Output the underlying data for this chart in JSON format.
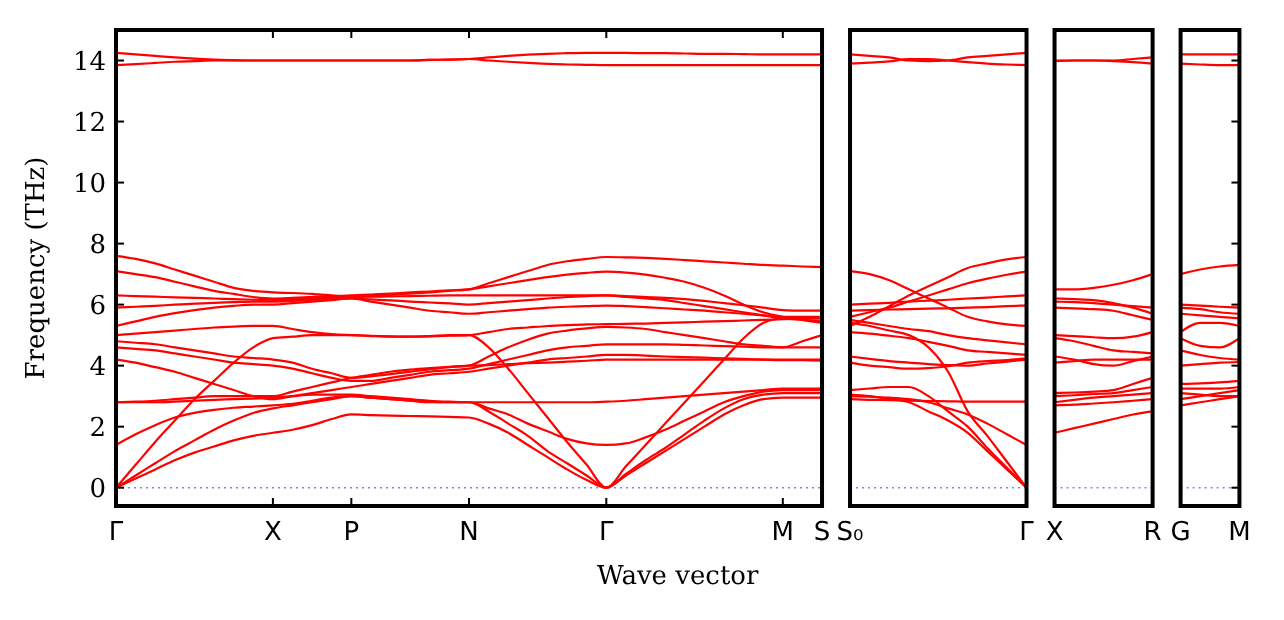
{
  "chart_data": [
    {
      "type": "line",
      "xlabel": "Wave vector",
      "ylabel": "Frequency (THz)",
      "ylim": [
        -0.6,
        15
      ],
      "yticks": [
        0,
        2,
        4,
        6,
        8,
        10,
        12,
        14
      ],
      "grid": false,
      "categories": [
        "Γ",
        null,
        null,
        null,
        null,
        null,
        null,
        null,
        "X",
        null,
        null,
        null,
        "P",
        null,
        null,
        null,
        null,
        null,
        "N",
        null,
        null,
        null,
        null,
        null,
        null,
        "Γ",
        null,
        null,
        null,
        null,
        null,
        null,
        null,
        null,
        "M",
        null,
        "S"
      ],
      "ref_lines": [
        {
          "axis": "y",
          "value": 0,
          "color": "#8080ff",
          "line_style": "dotted"
        }
      ],
      "series": [
        {
          "color": "#ff0000",
          "values": [
            0,
            0.3,
            0.6,
            0.9,
            1.15,
            1.35,
            1.55,
            1.7,
            1.8,
            1.9,
            2.05,
            2.25,
            2.4,
            2.38,
            2.36,
            2.35,
            2.34,
            2.32,
            2.3,
            2.1,
            1.8,
            1.4,
            1.0,
            0.6,
            0.25,
            0,
            0.4,
            0.8,
            1.2,
            1.6,
            2.0,
            2.4,
            2.7,
            2.9,
            2.95,
            2.95,
            2.95
          ]
        },
        {
          "color": "#ff0000",
          "values": [
            0,
            0.4,
            0.8,
            1.2,
            1.55,
            1.9,
            2.2,
            2.45,
            2.6,
            2.7,
            2.8,
            2.9,
            3.0,
            2.95,
            2.9,
            2.85,
            2.8,
            2.8,
            2.8,
            2.5,
            2.1,
            1.7,
            1.2,
            0.8,
            0.4,
            0,
            0.45,
            0.9,
            1.3,
            1.75,
            2.2,
            2.6,
            2.9,
            3.05,
            3.1,
            3.1,
            3.1
          ]
        },
        {
          "color": "#ff0000",
          "values": [
            0,
            0.75,
            1.5,
            2.2,
            2.9,
            3.5,
            4.1,
            4.6,
            4.9,
            4.95,
            5.0,
            5.0,
            5.0,
            4.97,
            4.95,
            4.95,
            4.97,
            5.0,
            5.0,
            4.6,
            3.9,
            3.1,
            2.3,
            1.5,
            0.75,
            0,
            0.7,
            1.4,
            2.1,
            2.8,
            3.5,
            4.2,
            4.9,
            5.4,
            5.55,
            5.55,
            5.55
          ]
        },
        {
          "color": "#ff0000",
          "values": [
            1.4,
            1.75,
            2.05,
            2.3,
            2.45,
            2.55,
            2.62,
            2.66,
            2.7,
            2.75,
            2.85,
            2.95,
            3.0,
            2.95,
            2.9,
            2.85,
            2.82,
            2.8,
            2.8,
            2.6,
            2.4,
            2.1,
            1.85,
            1.6,
            1.45,
            1.4,
            1.45,
            1.65,
            1.9,
            2.2,
            2.5,
            2.8,
            3.0,
            3.15,
            3.2,
            3.2,
            3.2
          ]
        },
        {
          "color": "#ff0000",
          "values": [
            2.8,
            2.8,
            2.8,
            2.82,
            2.85,
            2.88,
            2.9,
            2.92,
            2.95,
            3.0,
            3.05,
            3.05,
            3.05,
            3.0,
            2.95,
            2.9,
            2.85,
            2.82,
            2.8,
            2.8,
            2.8,
            2.8,
            2.8,
            2.8,
            2.8,
            2.82,
            2.85,
            2.9,
            2.95,
            3.0,
            3.05,
            3.1,
            3.15,
            3.2,
            3.25,
            3.25,
            3.25
          ]
        },
        {
          "color": "#ff0000",
          "values": [
            2.8,
            2.82,
            2.85,
            2.9,
            2.95,
            3.0,
            3.0,
            3.0,
            3.0,
            3.15,
            3.3,
            3.45,
            3.6,
            3.7,
            3.8,
            3.87,
            3.92,
            3.96,
            4.0,
            4.02,
            4.05,
            4.08,
            4.1,
            4.13,
            4.16,
            4.2,
            4.2,
            4.2,
            4.2,
            4.2,
            4.2,
            4.2,
            4.2,
            4.2,
            4.2,
            4.2,
            4.2
          ]
        },
        {
          "color": "#ff0000",
          "values": [
            4.2,
            4.1,
            3.95,
            3.8,
            3.6,
            3.4,
            3.2,
            3.0,
            2.9,
            3.0,
            3.1,
            3.2,
            3.3,
            3.4,
            3.5,
            3.6,
            3.7,
            3.75,
            3.8,
            3.9,
            4.0,
            4.1,
            4.2,
            4.25,
            4.3,
            4.35,
            4.35,
            4.33,
            4.3,
            4.28,
            4.26,
            4.24,
            4.22,
            4.2,
            4.18,
            4.18,
            4.16
          ]
        },
        {
          "color": "#ff0000",
          "values": [
            4.6,
            4.55,
            4.5,
            4.4,
            4.3,
            4.2,
            4.1,
            4.05,
            4.0,
            3.9,
            3.75,
            3.6,
            3.5,
            3.5,
            3.6,
            3.7,
            3.8,
            3.85,
            3.9,
            4.05,
            4.2,
            4.35,
            4.5,
            4.6,
            4.65,
            4.7,
            4.7,
            4.7,
            4.7,
            4.68,
            4.66,
            4.64,
            4.62,
            4.6,
            4.6,
            4.6,
            4.6
          ]
        },
        {
          "color": "#ff0000",
          "values": [
            4.8,
            4.75,
            4.7,
            4.6,
            4.5,
            4.4,
            4.3,
            4.25,
            4.2,
            4.1,
            3.9,
            3.75,
            3.6,
            3.65,
            3.72,
            3.8,
            3.88,
            3.95,
            4.0,
            4.3,
            4.6,
            4.85,
            5.05,
            5.15,
            5.22,
            5.27,
            5.25,
            5.2,
            5.1,
            5.0,
            4.9,
            4.8,
            4.7,
            4.65,
            4.6,
            4.8,
            5.0
          ]
        },
        {
          "color": "#ff0000",
          "values": [
            5.0,
            5.05,
            5.1,
            5.15,
            5.2,
            5.25,
            5.28,
            5.3,
            5.3,
            5.2,
            5.1,
            5.03,
            5.0,
            4.98,
            4.96,
            4.95,
            4.96,
            4.98,
            5.0,
            5.1,
            5.2,
            5.25,
            5.3,
            5.33,
            5.35,
            5.36,
            5.37,
            5.38,
            5.4,
            5.42,
            5.44,
            5.46,
            5.48,
            5.5,
            5.52,
            5.54,
            5.56
          ]
        },
        {
          "color": "#ff0000",
          "values": [
            5.3,
            5.45,
            5.6,
            5.72,
            5.82,
            5.9,
            5.96,
            6.0,
            6.0,
            6.05,
            6.1,
            6.15,
            6.2,
            6.1,
            6.0,
            5.9,
            5.8,
            5.75,
            5.7,
            5.75,
            5.8,
            5.85,
            5.9,
            5.93,
            5.95,
            5.97,
            5.95,
            5.92,
            5.88,
            5.84,
            5.8,
            5.75,
            5.7,
            5.65,
            5.6,
            5.6,
            5.6
          ]
        },
        {
          "color": "#ff0000",
          "values": [
            5.9,
            5.93,
            5.96,
            6.0,
            6.03,
            6.06,
            6.08,
            6.1,
            6.1,
            6.12,
            6.15,
            6.18,
            6.2,
            6.17,
            6.14,
            6.1,
            6.07,
            6.04,
            6.0,
            6.05,
            6.1,
            6.15,
            6.2,
            6.25,
            6.28,
            6.3,
            6.25,
            6.2,
            6.15,
            6.05,
            5.95,
            5.85,
            5.75,
            5.65,
            5.55,
            5.5,
            5.45
          ]
        },
        {
          "color": "#ff0000",
          "values": [
            6.3,
            6.28,
            6.26,
            6.24,
            6.22,
            6.2,
            6.18,
            6.16,
            6.15,
            6.17,
            6.2,
            6.22,
            6.25,
            6.26,
            6.27,
            6.28,
            6.29,
            6.3,
            6.3,
            6.3,
            6.3,
            6.3,
            6.3,
            6.3,
            6.3,
            6.3,
            6.28,
            6.25,
            6.22,
            6.18,
            6.12,
            6.05,
            5.98,
            5.9,
            5.82,
            5.8,
            5.8
          ]
        },
        {
          "color": "#ff0000",
          "values": [
            7.1,
            7.0,
            6.9,
            6.75,
            6.6,
            6.45,
            6.35,
            6.25,
            6.2,
            6.22,
            6.25,
            6.28,
            6.3,
            6.33,
            6.36,
            6.4,
            6.43,
            6.47,
            6.5,
            6.6,
            6.7,
            6.8,
            6.9,
            6.98,
            7.04,
            7.08,
            7.05,
            6.98,
            6.88,
            6.75,
            6.55,
            6.3,
            6.0,
            5.75,
            5.6,
            5.5,
            5.4
          ]
        },
        {
          "color": "#ff0000",
          "values": [
            7.6,
            7.5,
            7.35,
            7.15,
            6.95,
            6.75,
            6.55,
            6.45,
            6.4,
            6.38,
            6.35,
            6.3,
            6.25,
            6.28,
            6.32,
            6.36,
            6.4,
            6.45,
            6.5,
            6.7,
            6.9,
            7.1,
            7.3,
            7.42,
            7.5,
            7.56,
            7.55,
            7.53,
            7.5,
            7.46,
            7.42,
            7.38,
            7.34,
            7.3,
            7.28,
            7.25,
            7.23
          ]
        },
        {
          "color": "#ff0000",
          "values": [
            13.85,
            13.88,
            13.92,
            13.96,
            13.98,
            14.0,
            14.0,
            14.0,
            14.0,
            14.0,
            14.0,
            14.0,
            14.0,
            14.0,
            14.0,
            14.0,
            14.02,
            14.03,
            14.05,
            14.0,
            13.96,
            13.92,
            13.89,
            13.87,
            13.86,
            13.85,
            13.85,
            13.85,
            13.85,
            13.85,
            13.85,
            13.85,
            13.85,
            13.85,
            13.85,
            13.85,
            13.85
          ]
        },
        {
          "color": "#ff0000",
          "values": [
            14.25,
            14.2,
            14.15,
            14.1,
            14.06,
            14.03,
            14.01,
            14.0,
            14.0,
            14.0,
            14.0,
            14.0,
            14.0,
            14.0,
            14.0,
            14.0,
            14.02,
            14.03,
            14.05,
            14.1,
            14.15,
            14.19,
            14.22,
            14.24,
            14.25,
            14.25,
            14.25,
            14.24,
            14.24,
            14.23,
            14.22,
            14.22,
            14.21,
            14.2,
            14.2,
            14.2,
            14.2
          ]
        }
      ]
    },
    {
      "type": "line",
      "ylim": [
        -0.6,
        15
      ],
      "tick_labels": "x",
      "grid": false,
      "categories": [
        "S₀",
        null,
        null,
        null,
        null,
        null,
        null,
        null,
        null,
        "Γ"
      ],
      "ref_lines": [
        {
          "axis": "y",
          "value": 0,
          "color": "#8080ff",
          "line_style": "dotted"
        }
      ],
      "series": [
        {
          "color": "#ff0000",
          "values": [
            14.2,
            14.15,
            14.1,
            14.0,
            13.98,
            14.0,
            14.1,
            14.15,
            14.2,
            14.25
          ]
        },
        {
          "color": "#ff0000",
          "values": [
            13.9,
            13.93,
            13.97,
            14.05,
            14.05,
            14.0,
            13.95,
            13.9,
            13.87,
            13.85
          ]
        },
        {
          "color": "#ff0000",
          "values": [
            7.1,
            7.0,
            6.8,
            6.5,
            6.2,
            5.9,
            5.6,
            5.45,
            5.35,
            5.3
          ]
        },
        {
          "color": "#ff0000",
          "values": [
            5.3,
            5.6,
            5.95,
            6.3,
            6.6,
            6.9,
            7.2,
            7.35,
            7.48,
            7.56
          ]
        },
        {
          "color": "#ff0000",
          "values": [
            5.6,
            5.75,
            5.9,
            6.1,
            6.3,
            6.5,
            6.7,
            6.85,
            6.98,
            7.08
          ]
        },
        {
          "color": "#ff0000",
          "values": [
            6.0,
            6.03,
            6.06,
            6.1,
            6.13,
            6.16,
            6.2,
            6.23,
            6.27,
            6.3
          ]
        },
        {
          "color": "#ff0000",
          "values": [
            5.8,
            5.82,
            5.84,
            5.85,
            5.87,
            5.88,
            5.9,
            5.92,
            5.95,
            5.97
          ]
        },
        {
          "color": "#ff0000",
          "values": [
            5.5,
            5.4,
            5.3,
            5.2,
            5.13,
            5.0,
            4.9,
            4.83,
            4.76,
            4.7
          ]
        },
        {
          "color": "#ff0000",
          "values": [
            5.4,
            5.3,
            5.15,
            5.0,
            4.6,
            3.8,
            2.5,
            1.7,
            0.85,
            0
          ]
        },
        {
          "color": "#ff0000",
          "values": [
            5.1,
            5.05,
            4.98,
            4.9,
            4.78,
            4.65,
            4.5,
            4.45,
            4.4,
            4.35
          ]
        },
        {
          "color": "#ff0000",
          "values": [
            4.3,
            4.22,
            4.15,
            4.1,
            4.05,
            4.02,
            4.0,
            4.07,
            4.13,
            4.2
          ]
        },
        {
          "color": "#ff0000",
          "values": [
            4.1,
            4.0,
            3.95,
            3.9,
            3.92,
            3.98,
            4.1,
            4.15,
            4.18,
            4.24
          ]
        },
        {
          "color": "#ff0000",
          "values": [
            3.2,
            3.25,
            3.3,
            3.3,
            3.0,
            2.5,
            2.0,
            1.3,
            0.65,
            0
          ]
        },
        {
          "color": "#ff0000",
          "values": [
            3.0,
            2.98,
            2.95,
            2.9,
            2.8,
            2.6,
            2.4,
            2.1,
            1.75,
            1.4
          ]
        },
        {
          "color": "#ff0000",
          "values": [
            3.05,
            3.0,
            2.9,
            2.8,
            2.5,
            2.2,
            1.8,
            1.2,
            0.6,
            0
          ]
        },
        {
          "color": "#ff0000",
          "values": [
            2.9,
            2.88,
            2.87,
            2.85,
            2.84,
            2.83,
            2.82,
            2.82,
            2.82,
            2.82
          ]
        }
      ]
    },
    {
      "type": "line",
      "ylim": [
        -0.6,
        15
      ],
      "tick_labels": "x",
      "grid": false,
      "categories": [
        "X",
        null,
        null,
        null,
        null,
        "R"
      ],
      "ref_lines": [
        {
          "axis": "y",
          "value": 0,
          "color": "#8080ff",
          "line_style": "dotted"
        }
      ],
      "series": [
        {
          "color": "#ff0000",
          "values": [
            14.0,
            14.0,
            14.0,
            14.0,
            14.05,
            14.1
          ]
        },
        {
          "color": "#ff0000",
          "values": [
            13.98,
            14.0,
            14.0,
            13.98,
            13.95,
            13.9
          ]
        },
        {
          "color": "#ff0000",
          "values": [
            6.5,
            6.5,
            6.55,
            6.65,
            6.8,
            7.0
          ]
        },
        {
          "color": "#ff0000",
          "values": [
            6.2,
            6.18,
            6.15,
            6.05,
            5.9,
            5.7
          ]
        },
        {
          "color": "#ff0000",
          "values": [
            6.1,
            6.08,
            6.05,
            6.0,
            5.95,
            5.9
          ]
        },
        {
          "color": "#ff0000",
          "values": [
            5.9,
            5.88,
            5.85,
            5.8,
            5.65,
            5.5
          ]
        },
        {
          "color": "#ff0000",
          "values": [
            5.0,
            4.97,
            4.93,
            4.9,
            4.95,
            5.1
          ]
        },
        {
          "color": "#ff0000",
          "values": [
            4.9,
            4.8,
            4.65,
            4.5,
            4.45,
            4.4
          ]
        },
        {
          "color": "#ff0000",
          "values": [
            4.3,
            4.2,
            4.05,
            4.0,
            4.15,
            4.3
          ]
        },
        {
          "color": "#ff0000",
          "values": [
            4.1,
            4.15,
            4.2,
            4.2,
            4.2,
            4.2
          ]
        },
        {
          "color": "#ff0000",
          "values": [
            3.1,
            3.12,
            3.15,
            3.2,
            3.4,
            3.6
          ]
        },
        {
          "color": "#ff0000",
          "values": [
            3.0,
            3.03,
            3.07,
            3.1,
            3.2,
            3.3
          ]
        },
        {
          "color": "#ff0000",
          "values": [
            2.8,
            2.88,
            2.95,
            3.0,
            3.05,
            3.1
          ]
        },
        {
          "color": "#ff0000",
          "values": [
            2.7,
            2.72,
            2.76,
            2.8,
            2.85,
            2.9
          ]
        },
        {
          "color": "#ff0000",
          "values": [
            1.8,
            1.95,
            2.1,
            2.25,
            2.4,
            2.5
          ]
        }
      ]
    },
    {
      "type": "line",
      "ylim": [
        -0.6,
        15
      ],
      "tick_labels": "x",
      "yticks": [
        {
          "value": 0,
          "label": null
        },
        {
          "value": 2,
          "label": null
        },
        {
          "value": 4,
          "label": null
        },
        {
          "value": 6,
          "label": null
        },
        {
          "value": 8,
          "label": null
        },
        {
          "value": 10,
          "label": null
        },
        {
          "value": 12,
          "label": null
        },
        {
          "value": 14,
          "label": null
        }
      ],
      "grid": false,
      "categories": [
        "G",
        null,
        null,
        "M"
      ],
      "ref_lines": [
        {
          "axis": "y",
          "value": 0,
          "color": "#8080ff",
          "line_style": "dotted"
        }
      ],
      "series": [
        {
          "color": "#ff0000",
          "values": [
            14.2,
            14.2,
            14.2,
            14.2
          ]
        },
        {
          "color": "#ff0000",
          "values": [
            13.9,
            13.87,
            13.85,
            13.85
          ]
        },
        {
          "color": "#ff0000",
          "values": [
            7.0,
            7.15,
            7.25,
            7.3
          ]
        },
        {
          "color": "#ff0000",
          "values": [
            6.0,
            5.97,
            5.93,
            5.9
          ]
        },
        {
          "color": "#ff0000",
          "values": [
            5.9,
            5.85,
            5.75,
            5.7
          ]
        },
        {
          "color": "#ff0000",
          "values": [
            5.7,
            5.65,
            5.6,
            5.55
          ]
        },
        {
          "color": "#ff0000",
          "values": [
            5.1,
            5.4,
            5.4,
            5.3
          ]
        },
        {
          "color": "#ff0000",
          "values": [
            4.9,
            4.65,
            4.6,
            4.9
          ]
        },
        {
          "color": "#ff0000",
          "values": [
            4.5,
            4.35,
            4.25,
            4.2
          ]
        },
        {
          "color": "#ff0000",
          "values": [
            4.0,
            4.05,
            4.1,
            4.12
          ]
        },
        {
          "color": "#ff0000",
          "values": [
            3.4,
            3.42,
            3.45,
            3.5
          ]
        },
        {
          "color": "#ff0000",
          "values": [
            3.25,
            3.25,
            3.25,
            3.3
          ]
        },
        {
          "color": "#ff0000",
          "values": [
            3.1,
            3.05,
            3.0,
            3.0
          ]
        },
        {
          "color": "#ff0000",
          "values": [
            2.9,
            3.0,
            3.1,
            3.2
          ]
        },
        {
          "color": "#ff0000",
          "values": [
            2.7,
            2.8,
            2.9,
            3.0
          ]
        }
      ]
    }
  ]
}
